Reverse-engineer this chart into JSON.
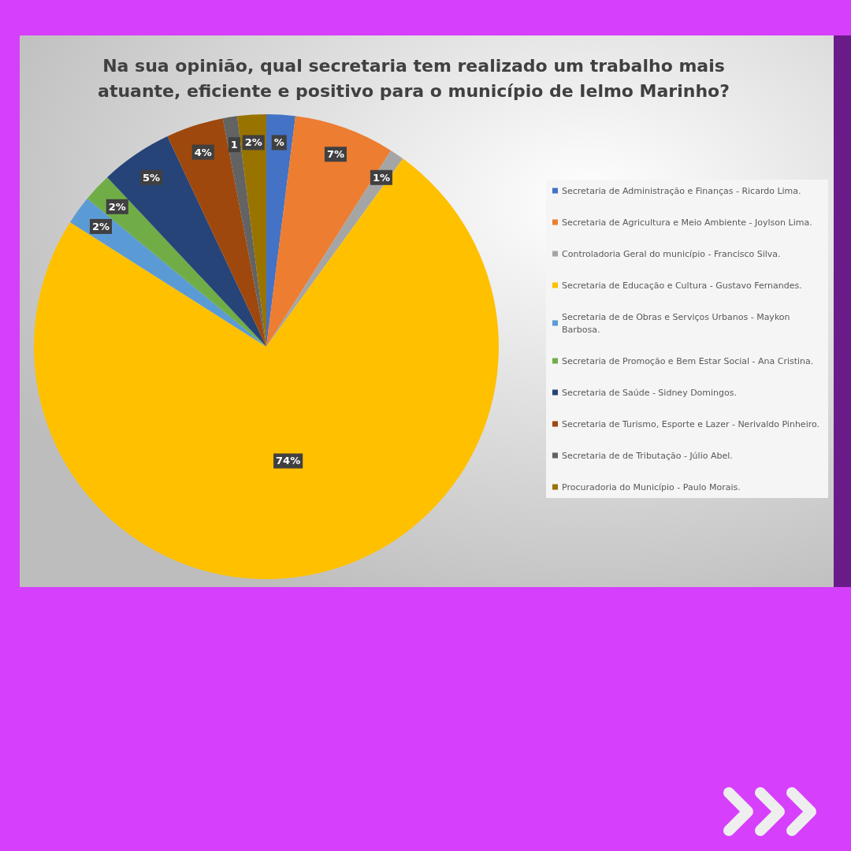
{
  "chart_data": {
    "type": "pie",
    "title": "Na sua opinião, qual secretaria tem realizado um trabalho mais\natuante, eficiente e positivo para o município de Ielmo Marinho?",
    "categories": [
      "Secretaria de Administração e Finanças - Ricardo Lima.",
      "Secretaria de Agricultura e Meio Ambiente - Joylson Lima.",
      "Controladoria Geral do município - Francisco Silva.",
      "Secretaria de Educação e Cultura - Gustavo Fernandes.",
      "Secretaria de de Obras e Serviços Urbanos - Maykon Barbosa.",
      "Secretaria de Promoção e Bem Estar Social - Ana Cristina.",
      "Secretaria de Saúde - Sidney Domingos.",
      "Secretaria de Turismo, Esporte e Lazer - Nerivaldo Pinheiro.",
      "Secretaria de de Tributação - Júlio Abel.",
      "Procuradoria do Município - Paulo Morais."
    ],
    "values": [
      2,
      7,
      1,
      74,
      2,
      2,
      5,
      4,
      1,
      2
    ],
    "colors": [
      "#4472c4",
      "#ed7d31",
      "#a5a5a5",
      "#ffc000",
      "#5b9bd5",
      "#70ad47",
      "#264478",
      "#9e480e",
      "#636363",
      "#997300"
    ],
    "value_labels": [
      "%",
      "7%",
      "1%",
      "74%",
      "2%",
      "2%",
      "5%",
      "4%",
      "1",
      "2%"
    ],
    "legend": "right"
  }
}
